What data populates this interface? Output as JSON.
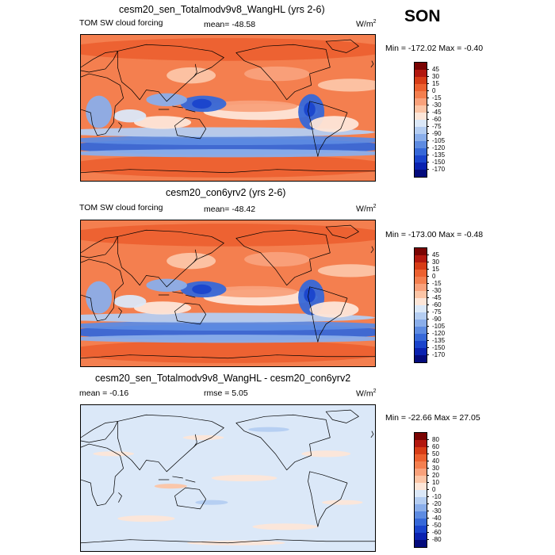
{
  "season": "SON",
  "panels": [
    {
      "title": "cesm20_sen_Totalmodv9v8_WangHL (yrs 2-6)",
      "left_label": "TOM SW cloud forcing",
      "center_label": "mean= -48.58",
      "units": "W/m",
      "units_sup": "2",
      "minmax": "Min = -172.02 Max =  -0.40",
      "colorbar": {
        "labels": [
          "45",
          "30",
          "15",
          "0",
          "-15",
          "-30",
          "-45",
          "-60",
          "-75",
          "-90",
          "-105",
          "-120",
          "-135",
          "-150",
          "-170"
        ],
        "colors": [
          "#7a0403",
          "#b2180f",
          "#d73d17",
          "#ec6130",
          "#f47f4f",
          "#f9a17b",
          "#fcc5a6",
          "#fde6d8",
          "#dbe8f8",
          "#b4cdf1",
          "#8aaeea",
          "#5d8be1",
          "#3668d8",
          "#1a44cc",
          "#0a22b0",
          "#040b7c"
        ]
      },
      "map": {
        "style": "forcing",
        "basefill": "#f47f4f"
      }
    },
    {
      "title": "cesm20_con6yrv2 (yrs 2-6)",
      "left_label": "TOM SW cloud forcing",
      "center_label": "mean= -48.42",
      "units": "W/m",
      "units_sup": "2",
      "minmax": "Min = -173.00 Max =  -0.48",
      "colorbar": {
        "labels": [
          "45",
          "30",
          "15",
          "0",
          "-15",
          "-30",
          "-45",
          "-60",
          "-75",
          "-90",
          "-105",
          "-120",
          "-135",
          "-150",
          "-170"
        ],
        "colors": [
          "#7a0403",
          "#b2180f",
          "#d73d17",
          "#ec6130",
          "#f47f4f",
          "#f9a17b",
          "#fcc5a6",
          "#fde6d8",
          "#dbe8f8",
          "#b4cdf1",
          "#8aaeea",
          "#5d8be1",
          "#3668d8",
          "#1a44cc",
          "#0a22b0",
          "#040b7c"
        ]
      },
      "map": {
        "style": "forcing",
        "basefill": "#f47f4f"
      }
    },
    {
      "title": "cesm20_sen_Totalmodv9v8_WangHL - cesm20_con6yrv2",
      "left_label": "mean =  -0.16",
      "center_label": "rmse =   5.05",
      "units": "W/m",
      "units_sup": "2",
      "minmax": "Min = -22.66 Max =  27.05",
      "colorbar": {
        "labels": [
          "80",
          "60",
          "50",
          "40",
          "30",
          "20",
          "10",
          "0",
          "-10",
          "-20",
          "-30",
          "-40",
          "-50",
          "-60",
          "-80"
        ],
        "colors": [
          "#7a0403",
          "#b2180f",
          "#d73d17",
          "#ec6130",
          "#f47f4f",
          "#f9a17b",
          "#fcc5a6",
          "#fde6d8",
          "#dbe8f8",
          "#b4cdf1",
          "#8aaeea",
          "#5d8be1",
          "#3668d8",
          "#1a44cc",
          "#0a22b0",
          "#040b7c"
        ]
      },
      "map": {
        "style": "diff",
        "basefill": "#dbe8f8"
      }
    }
  ]
}
